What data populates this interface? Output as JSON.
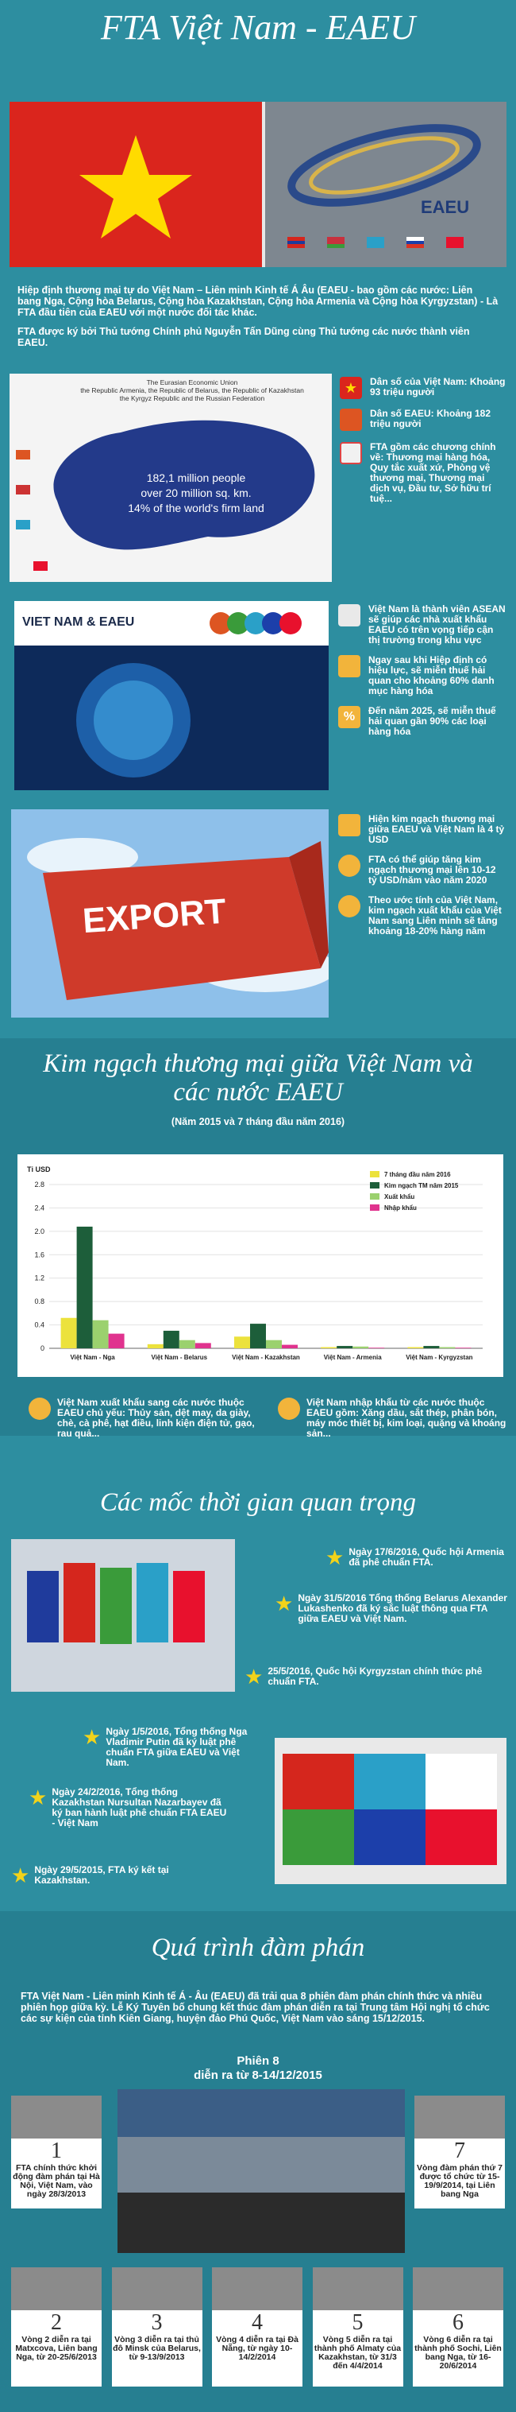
{
  "title": "FTA Việt Nam - EAEU",
  "hero": {
    "eaeu_label": "EAEU"
  },
  "intro": [
    "Hiệp định thương mại tự do Việt Nam – Liên minh Kinh tế Á Âu (EAEU - bao gồm các nước: Liên bang Nga, Cộng hòa Belarus, Cộng hòa Kazakhstan, Cộng hòa Armenia và Cộng hòa Kyrgyzstan) - Là FTA đầu tiên của EAEU với một nước đối tác khác.",
    "FTA được ký bởi Thủ tướng Chính phủ Nguyễn Tấn Dũng cùng Thủ tướng các nước thành viên EAEU."
  ],
  "map": {
    "caption": "The Eurasian Economic Union\nthe Republic Armenia, the Republic of Belarus, the Republic of Kazakhstan\nthe Kyrgyz Republic and the Russian Federation",
    "stat1": "182,1 million people",
    "stat2": "over 20 million sq. km.",
    "stat3": "14% of the world's firm land"
  },
  "facts_top": [
    {
      "icon": "vietnam-flag-icon",
      "text": "Dân số của Việt Nam: Khoảng 93 triệu người"
    },
    {
      "icon": "eaeu-flag-icon",
      "text": "Dân số EAEU: Khoảng 182 triệu người"
    },
    {
      "icon": "document-icon",
      "text": "FTA gồm các chương chính về: Thương mại hàng hóa, Quy tắc xuất xứ, Phòng vệ thương mại, Thương mại dịch vụ, Đầu tư, Sở hữu trí tuệ..."
    }
  ],
  "banner": {
    "label": "VIET NAM & EAEU"
  },
  "facts_mid": [
    {
      "icon": "handshake-icon",
      "text": "Việt Nam là thành viên ASEAN sẽ giúp các nhà xuất khẩu EAEU có trên vọng tiếp cận thị trường trong khu vực"
    },
    {
      "icon": "thumbs-up-icon",
      "text": "Ngay sau khi Hiệp định có hiệu lực, sẽ miễn thuế hải quan cho khoảng 60% danh mục hàng hóa"
    },
    {
      "icon": "percent-icon",
      "text": "Đến năm 2025, sẽ miễn thuế hải quan gần 90% các loại hàng hóa"
    }
  ],
  "export_sign": "EXPORT",
  "facts_bottom": [
    {
      "icon": "growth-chart-icon",
      "text": "Hiện kim ngạch thương mại giữa EAEU và Việt Nam là 4 tỷ USD"
    },
    {
      "icon": "money-bag-icon",
      "text": "FTA có thể giúp tăng kim ngạch thương mại lên 10-12 tỷ USD/năm vào năm 2020"
    },
    {
      "icon": "money-bag-icon",
      "text": "Theo ước tính của Việt Nam, kim ngạch xuất khẩu của Việt Nam sang Liên minh sẽ tăng khoảng 18-20% hàng năm"
    }
  ],
  "trade_section": {
    "title": "Kim ngạch thương mại giữa Việt Nam và các nước EAEU",
    "subtitle": "(Năm 2015 và 7 tháng đầu năm 2016)"
  },
  "chart_data": {
    "type": "bar",
    "ylabel": "Tỉ USD",
    "ylim": [
      0,
      2.8
    ],
    "yticks": [
      "0",
      "0.4",
      "0.8",
      "1.2",
      "1.6",
      "2.0",
      "2.4",
      "2.8"
    ],
    "categories": [
      "Việt Nam - Nga",
      "Việt Nam - Belarus",
      "Việt Nam - Kazakhstan",
      "Việt Nam - Armenia",
      "Việt Nam - Kyrgyzstan"
    ],
    "series": [
      {
        "name": "7 tháng đầu năm 2016",
        "color": "#ece23c",
        "values": [
          0.52,
          0.07,
          0.2,
          0.02,
          0.02
        ]
      },
      {
        "name": "Kim ngạch TM năm 2015",
        "color": "#1d5e3a",
        "values": [
          2.08,
          0.3,
          0.42,
          0.04,
          0.04
        ]
      },
      {
        "name": "Xuất khẩu",
        "color": "#9bd16e",
        "values": [
          0.48,
          0.14,
          0.14,
          0.03,
          0.02
        ]
      },
      {
        "name": "Nhập khẩu",
        "color": "#e0338e",
        "values": [
          0.25,
          0.09,
          0.06,
          0.01,
          0.01
        ]
      }
    ],
    "legend": "top-right"
  },
  "trade_notes": [
    {
      "icon": "export-person-icon",
      "text": "Việt Nam xuất khẩu sang các nước thuộc EAEU chủ yếu: Thủy sản, dệt may, da giày, chè, cà phê, hạt điều, linh kiện điện tử, gạo, rau quả..."
    },
    {
      "icon": "import-person-icon",
      "text": "Việt Nam nhập khẩu từ các nước thuộc EAEU gồm: Xăng dầu, sắt thép, phân bón, máy móc thiết bị, kim loại, quặng và khoáng sản..."
    }
  ],
  "milestones_title": "Các mốc thời gian quan trọng",
  "milestones": [
    {
      "text": "Ngày 17/6/2016, Quốc hội Armenia đã phê chuẩn FTA."
    },
    {
      "text": "Ngày 31/5/2016 Tổng thống Belarus Alexander Lukashenko đã ký sắc luật thông qua FTA giữa EAEU và Việt Nam."
    },
    {
      "text": "25/5/2016, Quốc hội Kyrgyzstan chính thức phê chuẩn FTA."
    },
    {
      "text": "Ngày 1/5/2016, Tổng thống Nga Vladimir Putin đã ký luật phê chuẩn FTA giữa EAEU và Việt Nam."
    },
    {
      "text": "Ngày 24/2/2016, Tổng thống Kazakhstan Nursultan Nazarbayev đã ký ban hành luật phê chuẩn FTA EAEU - Việt Nam"
    },
    {
      "text": "Ngày 29/5/2015, FTA ký kết tại Kazakhstan."
    }
  ],
  "negotiation": {
    "title": "Quá trình đàm phán",
    "text": "FTA Việt Nam - Liên minh Kinh tế Á - Âu (EAEU) đã trải qua 8 phiên đàm phán chính thức và nhiều phiên họp giữa kỳ. Lễ Ký Tuyên bố chung kết thúc đàm phán diễn ra tại Trung tâm Hội nghị tổ chức các sự kiện của tỉnh Kiên Giang, huyện đảo Phú Quốc, Việt Nam vào sáng 15/12/2015.",
    "session8_title": "Phiên 8",
    "session8_sub": "diễn ra từ 8-14/12/2015"
  },
  "rounds": [
    {
      "num": "1",
      "text": "FTA chính thức khởi động đàm phán tại Hà Nội, Việt Nam, vào ngày 28/3/2013"
    },
    {
      "num": "7",
      "text": "Vòng đàm phán thứ 7 được tổ chức từ 15-19/9/2014, tại Liên bang Nga"
    },
    {
      "num": "2",
      "text": "Vòng 2 diễn ra tại Matxcova, Liên bang Nga, từ 20-25/6/2013"
    },
    {
      "num": "3",
      "text": "Vòng 3 diễn ra tại thủ đô Minsk của Belarus, từ 9-13/9/2013"
    },
    {
      "num": "4",
      "text": "Vòng 4 diễn ra tại Đà Nẵng, từ ngày 10-14/2/2014"
    },
    {
      "num": "5",
      "text": "Vòng 5 diễn ra tại thành phố Almaty của Kazakhstan, từ 31/3 đến 4/4/2014"
    },
    {
      "num": "6",
      "text": "Vòng 6 diễn ra tại thành phố Sochi, Liên bang Nga, từ 16-20/6/2014"
    }
  ]
}
